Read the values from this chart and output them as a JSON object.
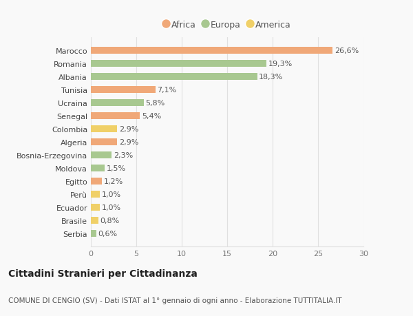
{
  "countries": [
    "Marocco",
    "Romania",
    "Albania",
    "Tunisia",
    "Ucraina",
    "Senegal",
    "Colombia",
    "Algeria",
    "Bosnia-Erzegovina",
    "Moldova",
    "Egitto",
    "Perù",
    "Ecuador",
    "Brasile",
    "Serbia"
  ],
  "values": [
    26.6,
    19.3,
    18.3,
    7.1,
    5.8,
    5.4,
    2.9,
    2.9,
    2.3,
    1.5,
    1.2,
    1.0,
    1.0,
    0.8,
    0.6
  ],
  "labels": [
    "26,6%",
    "19,3%",
    "18,3%",
    "7,1%",
    "5,8%",
    "5,4%",
    "2,9%",
    "2,9%",
    "2,3%",
    "1,5%",
    "1,2%",
    "1,0%",
    "1,0%",
    "0,8%",
    "0,6%"
  ],
  "continents": [
    "Africa",
    "Europa",
    "Europa",
    "Africa",
    "Europa",
    "Africa",
    "America",
    "Africa",
    "Europa",
    "Europa",
    "Africa",
    "America",
    "America",
    "America",
    "Europa"
  ],
  "continent_colors": {
    "Africa": "#F0A878",
    "Europa": "#A8C890",
    "America": "#F0D068"
  },
  "legend_items": [
    "Africa",
    "Europa",
    "America"
  ],
  "legend_colors": [
    "#F0A878",
    "#A8C890",
    "#F0D068"
  ],
  "title": "Cittadini Stranieri per Cittadinanza",
  "subtitle": "COMUNE DI CENGIO (SV) - Dati ISTAT al 1° gennaio di ogni anno - Elaborazione TUTTITALIA.IT",
  "xlim": [
    0,
    30
  ],
  "xticks": [
    0,
    5,
    10,
    15,
    20,
    25,
    30
  ],
  "background_color": "#f9f9f9",
  "grid_color": "#e0e0e0",
  "bar_height": 0.55,
  "title_fontsize": 10,
  "subtitle_fontsize": 7.5,
  "tick_fontsize": 8,
  "label_fontsize": 8,
  "legend_fontsize": 9
}
